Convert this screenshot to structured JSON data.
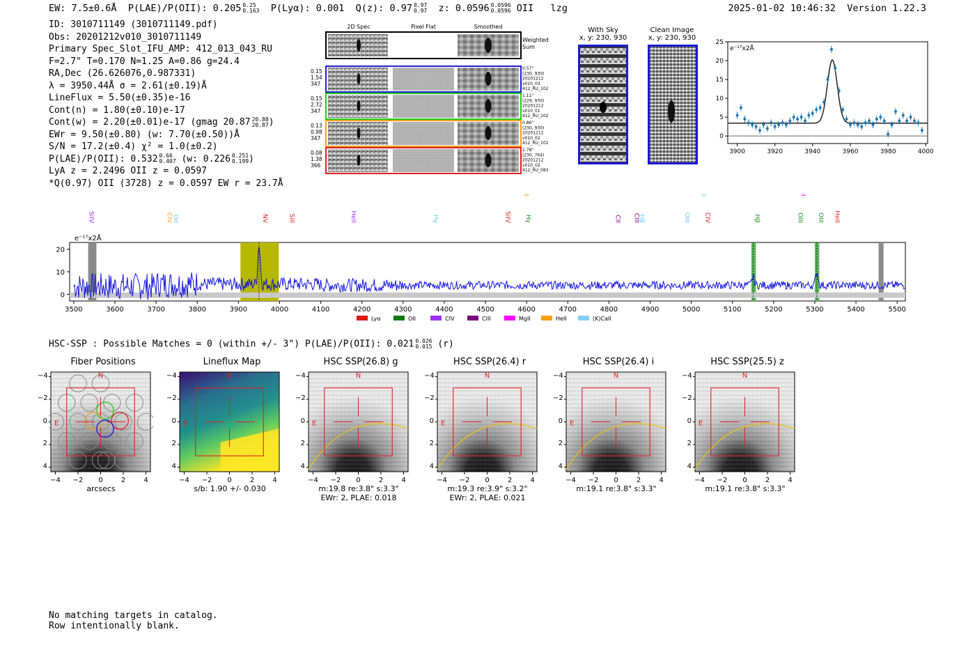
{
  "header": {
    "ew": "EW: 7.5±0.6Å",
    "plae": "P(LAE)/P(OII): 0.205",
    "plae_hi": "0.25",
    "plae_lo": "0.163",
    "plya": "P(Lyα): 0.001",
    "q": "Q(z): 0.97",
    "q_hi": "0.97",
    "q_lo": "0.97",
    "z": "z: 0.0596",
    "z_hi": "0.0596",
    "z_lo": "0.0596",
    "z_line": "OII",
    "flag": "lzg",
    "timestamp": "2025-01-02 10:46:32",
    "version": "Version 1.22.3"
  },
  "info": {
    "id": "ID: 3010711149 (3010711149.pdf)",
    "obs": "Obs: 20201212v010_3010711149",
    "primary": "Primary Spec_Slot_IFU_AMP: 412_013_043_RU",
    "fit": "F=2.7\"  T=0.170  N=1.25  A=0.86  g=24.4",
    "radec": "RA,Dec (26.626076,0.987331)",
    "lambda": "λ = 3950.44Å  σ = 2.61(±0.19)Å",
    "lineflux": "LineFlux = 5.50(±0.35)e-16",
    "cont_n": "Cont(n) = 1.80(±0.10)e-17",
    "cont_w": "Cont(w) = 2.20(±0.01)e-17 (gmag 20.87",
    "gmag_hi": "20.88",
    "gmag_lo": "20.87",
    "ewr": "EWr = 9.50(±0.80) (w: 7.70(±0.50))Å",
    "sn": "S/N = 17.2(±0.4)  χ² = 1.0(±0.2)",
    "plae": "P(LAE)/P(OII): 0.532",
    "plae_hi": "0.66",
    "plae_lo": "0.407",
    "plae_w": "(w: 0.226",
    "plae_w_hi": "0.251",
    "plae_w_lo": "0.199",
    "lya": "LyA z = 2.2496  OII z = 0.0597",
    "q_line": "*Q(0.97) OII (3728) z = 0.0597  EW r = 23.7Å"
  },
  "cutouts": {
    "col_2d": "2D Spec",
    "col_flat": "Pixel Flat",
    "col_smooth": "Smoothed",
    "weighted_sum": "Weighted Sum",
    "rows": [
      {
        "stats": [
          "0.15",
          "1.54",
          "347"
        ],
        "meta": [
          "0.57\"",
          "(230, 930)",
          "20201212",
          "v010_03",
          "412_RU_102"
        ],
        "color": "#1f1fd0"
      },
      {
        "stats": [
          "0.15",
          "2.72",
          "347"
        ],
        "meta": [
          "1.11\"",
          "(229, 930)",
          "20201212",
          "v010_01",
          "412_RU_102"
        ],
        "color": "#22cc22"
      },
      {
        "stats": [
          "0.13",
          "0.98",
          "347"
        ],
        "meta": [
          "0.86\"",
          "(230, 930)",
          "20201212",
          "v010_02",
          "412_RU_102"
        ],
        "color": "#f0a020"
      },
      {
        "stats": [
          "0.08",
          "1.38",
          "366"
        ],
        "meta": [
          "1.78\"",
          "(230, 764)",
          "20201212",
          "v010_02",
          "412_RU_083"
        ],
        "color": "#e02020"
      }
    ]
  },
  "sky": {
    "with_sky": "With Sky",
    "with_sky_xy": "x, y: 230, 930",
    "clean": "Clean Image",
    "clean_xy": "x, y: 230, 930"
  },
  "zoom_chart": {
    "type": "scatter",
    "unit_label": "e⁻¹⁷x2Å",
    "xlim": [
      3895,
      4001
    ],
    "ylim": [
      -2,
      25
    ],
    "xticks": [
      "3900",
      "3920",
      "3940",
      "3960",
      "3980",
      "4000"
    ],
    "yticks": [
      "0",
      "5",
      "10",
      "15",
      "20",
      "25"
    ],
    "x": [
      3900,
      3902,
      3904,
      3906,
      3908,
      3910,
      3912,
      3914,
      3916,
      3918,
      3920,
      3922,
      3924,
      3926,
      3928,
      3930,
      3932,
      3934,
      3936,
      3938,
      3940,
      3942,
      3944,
      3946,
      3948,
      3950,
      3952,
      3954,
      3956,
      3958,
      3960,
      3962,
      3964,
      3966,
      3968,
      3970,
      3972,
      3974,
      3976,
      3978,
      3980,
      3982,
      3984,
      3986,
      3988,
      3990,
      3992,
      3994,
      3996,
      3998
    ],
    "y": [
      5.5,
      7.5,
      4.5,
      3.5,
      3.0,
      2.5,
      1.5,
      3.0,
      2.0,
      3.5,
      2.5,
      3.0,
      3.5,
      3.0,
      4.0,
      5.0,
      4.5,
      5.0,
      4.0,
      5.5,
      6.0,
      7.0,
      7.5,
      9.0,
      15.0,
      23.0,
      18.0,
      12.0,
      7.0,
      4.5,
      3.0,
      3.5,
      3.0,
      2.5,
      3.5,
      4.0,
      3.0,
      4.5,
      5.0,
      4.0,
      0.5,
      3.0,
      6.5,
      4.0,
      5.5,
      4.0,
      5.0,
      4.0,
      3.5,
      1.5
    ],
    "fit_center": 3950.44,
    "fit_sigma": 2.61,
    "fit_continuum": 3.4,
    "fit_amp": 16.8
  },
  "spectrum": {
    "type": "line",
    "unit_label": "e⁻¹⁷x2Å",
    "xlim": [
      3490,
      5520
    ],
    "ylim": [
      -3,
      23
    ],
    "xticks": [
      "3500",
      "3600",
      "3700",
      "3800",
      "3900",
      "4000",
      "4100",
      "4200",
      "4300",
      "4400",
      "4500",
      "4600",
      "4700",
      "4800",
      "4900",
      "5000",
      "5100",
      "5200",
      "5300",
      "5400",
      "5500"
    ],
    "yticks": [
      "0",
      "10",
      "20"
    ],
    "line_markers": [
      {
        "name": "SiIV",
        "wave": 3533,
        "color": "#9b30ff",
        "row": 0
      },
      {
        "name": "CIV",
        "wave": 3723,
        "color": "#f0a020",
        "row": 0
      },
      {
        "name": "OII",
        "wave": 3738,
        "color": "#6cc6f0",
        "row": 0
      },
      {
        "name": "NV",
        "wave": 3955,
        "color": "#e02020",
        "row": 0
      },
      {
        "name": "SiII",
        "wave": 4020,
        "color": "#e02020",
        "row": 0
      },
      {
        "name": "HeII",
        "wave": 4170,
        "color": "#9b30ff",
        "row": 0
      },
      {
        "name": "Hγ",
        "wave": 4370,
        "color": "#6cc6f0",
        "row": 0
      },
      {
        "name": "SiIV",
        "wave": 4545,
        "color": "#e02020",
        "row": 0
      },
      {
        "name": "CIII",
        "wave": 4590,
        "color": "#f0a020",
        "row": 1
      },
      {
        "name": "Hγ",
        "wave": 4595,
        "color": "#1a8a1a",
        "row": 0
      },
      {
        "name": "CII",
        "wave": 4812,
        "color": "#8a008a",
        "row": 0
      },
      {
        "name": "CIII",
        "wave": 4858,
        "color": "#8a008a",
        "row": 0
      },
      {
        "name": "Hβ",
        "wave": 4870,
        "color": "#6cc6f0",
        "row": 0
      },
      {
        "name": "OIII",
        "wave": 4980,
        "color": "#6cc6f0",
        "row": 0
      },
      {
        "name": "CIV",
        "wave": 5030,
        "color": "#e02020",
        "row": 0
      },
      {
        "name": "OII",
        "wave": 5020,
        "color": "#6cc6f0",
        "row": 1
      },
      {
        "name": "Hβ",
        "wave": 5150,
        "color": "#1a8a1a",
        "row": 0
      },
      {
        "name": "OIII",
        "wave": 5255,
        "color": "#1a8a1a",
        "row": 0
      },
      {
        "name": "OIII",
        "wave": 5305,
        "color": "#1a8a1a",
        "row": 0
      },
      {
        "name": "OII",
        "wave": 5262,
        "color": "#ff00ff",
        "row": 1
      },
      {
        "name": "HeII",
        "wave": 5345,
        "color": "#e02020",
        "row": 0
      }
    ],
    "legend": [
      {
        "label": "Lyα",
        "color": "#e01818"
      },
      {
        "label": "OII",
        "color": "#0f7a0f"
      },
      {
        "label": "CIV",
        "color": "#9b30ff"
      },
      {
        "label": "CIII",
        "color": "#7a007a"
      },
      {
        "label": "MgII",
        "color": "#ff00ff"
      },
      {
        "label": "HeII",
        "color": "#ffa000"
      },
      {
        "label": "(K)CaII",
        "color": "#87cefa"
      }
    ]
  },
  "hsc": {
    "line": "HSC-SSP : Possible Matches = 0 (within +/- 3\")  P(LAE)/P(OII): 0.021",
    "plae_hi": "0.026",
    "plae_lo": "0.015",
    "band": "(r)",
    "panels": [
      {
        "title": "Fiber Positions",
        "cap1": "arcsecs",
        "cap2": ""
      },
      {
        "title": "Lineflux Map",
        "cap1": "s/b: 1.90 +/- 0.030",
        "cap2": ""
      },
      {
        "title": "HSC SSP(26.8) g",
        "cap1": "m:19.8  re:3.8\"  s:3.3\"",
        "cap2": "EWr: 2, PLAE: 0.018"
      },
      {
        "title": "HSC SSP(26.4) r",
        "cap1": "m:19.3  re:3.9\"  s:3.2\"",
        "cap2": "EWr: 2, PLAE: 0.021"
      },
      {
        "title": "HSC SSP(26.4) i",
        "cap1": "m:19.1  re:3.8\"  s:3.3\"",
        "cap2": ""
      },
      {
        "title": "HSC SSP(25.5) z",
        "cap1": "m:19.1  re:3.8\"  s:3.3\"",
        "cap2": ""
      }
    ],
    "axis_ticks": [
      "−4",
      "−2",
      "0",
      "2",
      "4"
    ],
    "north": "N",
    "east": "E"
  },
  "footer": {
    "line1": "No matching targets in catalog.",
    "line2": "Row intentionally blank."
  }
}
